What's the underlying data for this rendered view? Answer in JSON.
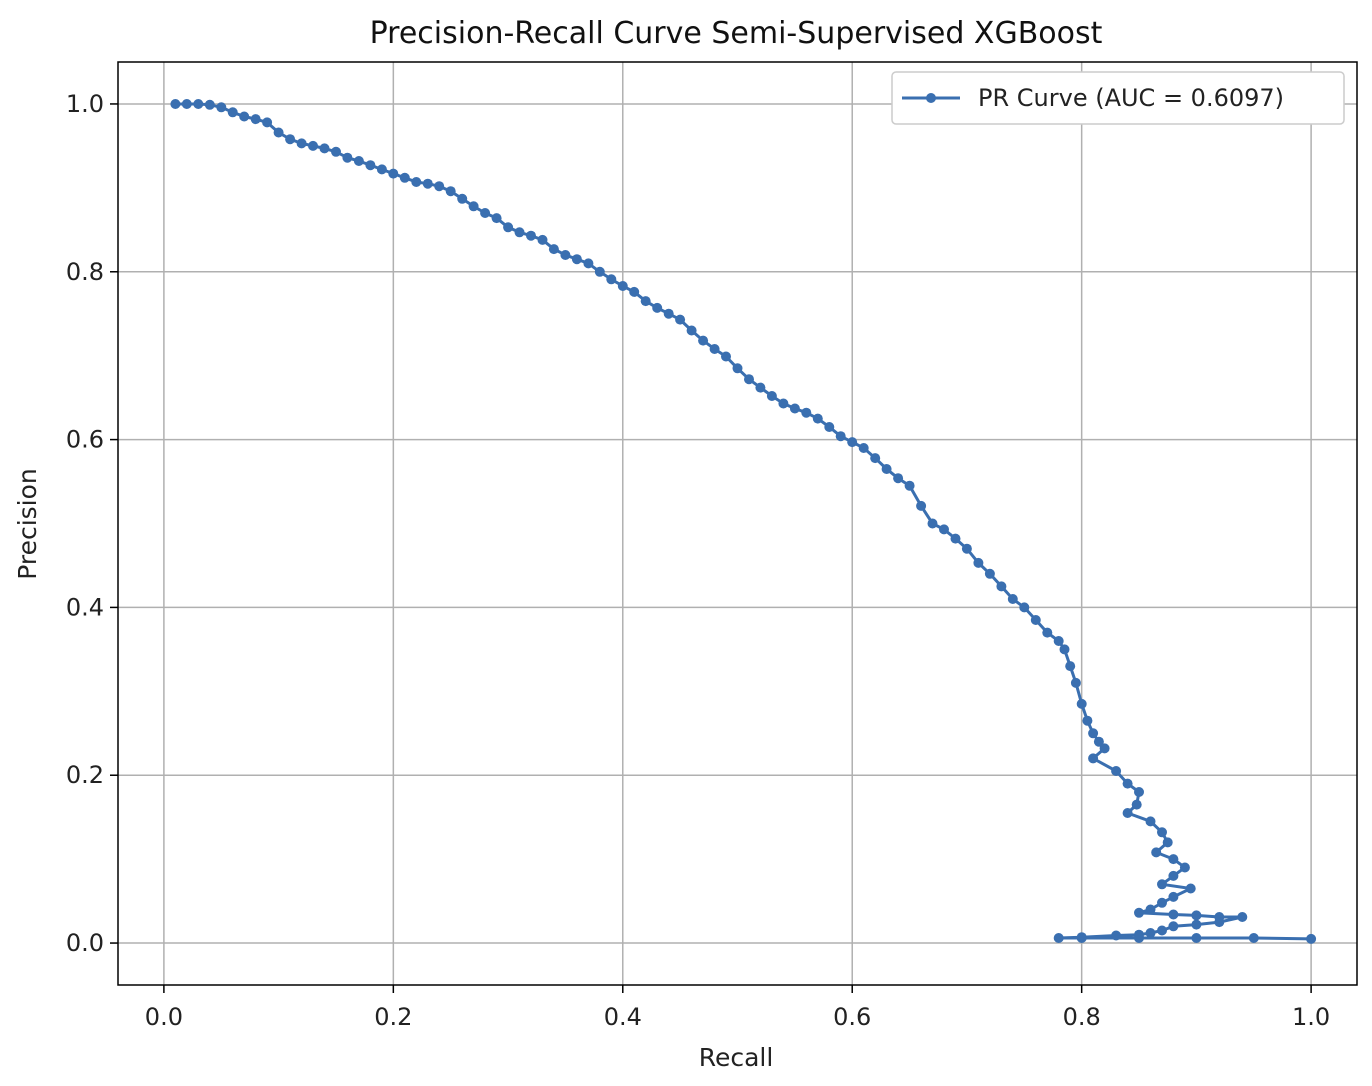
{
  "chart_data": {
    "type": "line",
    "title": "Precision-Recall Curve Semi-Supervised XGBoost",
    "xlabel": "Recall",
    "ylabel": "Precision",
    "xlim": [
      -0.04,
      1.04
    ],
    "ylim": [
      -0.05,
      1.05
    ],
    "xticks": [
      0.0,
      0.2,
      0.4,
      0.6,
      0.8,
      1.0
    ],
    "xtick_labels": [
      "0.0",
      "0.2",
      "0.4",
      "0.6",
      "0.8",
      "1.0"
    ],
    "yticks": [
      0.0,
      0.2,
      0.4,
      0.6,
      0.8,
      1.0
    ],
    "ytick_labels": [
      "0.0",
      "0.2",
      "0.4",
      "0.6",
      "0.8",
      "1.0"
    ],
    "grid": true,
    "legend_position": "top-right",
    "series": [
      {
        "name": "PR Curve (AUC = 0.6097)",
        "color": "#3a6fb0",
        "marker": "circle",
        "points": [
          [
            0.01,
            1.0
          ],
          [
            0.02,
            1.0
          ],
          [
            0.03,
            1.0
          ],
          [
            0.04,
            0.999
          ],
          [
            0.05,
            0.996
          ],
          [
            0.06,
            0.99
          ],
          [
            0.07,
            0.985
          ],
          [
            0.08,
            0.982
          ],
          [
            0.09,
            0.978
          ],
          [
            0.1,
            0.966
          ],
          [
            0.11,
            0.958
          ],
          [
            0.12,
            0.953
          ],
          [
            0.13,
            0.95
          ],
          [
            0.14,
            0.947
          ],
          [
            0.15,
            0.943
          ],
          [
            0.16,
            0.936
          ],
          [
            0.17,
            0.932
          ],
          [
            0.18,
            0.927
          ],
          [
            0.19,
            0.922
          ],
          [
            0.2,
            0.917
          ],
          [
            0.21,
            0.912
          ],
          [
            0.22,
            0.907
          ],
          [
            0.23,
            0.905
          ],
          [
            0.24,
            0.902
          ],
          [
            0.25,
            0.896
          ],
          [
            0.26,
            0.887
          ],
          [
            0.27,
            0.878
          ],
          [
            0.28,
            0.87
          ],
          [
            0.29,
            0.864
          ],
          [
            0.3,
            0.853
          ],
          [
            0.31,
            0.847
          ],
          [
            0.32,
            0.843
          ],
          [
            0.33,
            0.838
          ],
          [
            0.34,
            0.827
          ],
          [
            0.35,
            0.82
          ],
          [
            0.36,
            0.815
          ],
          [
            0.37,
            0.81
          ],
          [
            0.38,
            0.8
          ],
          [
            0.39,
            0.791
          ],
          [
            0.4,
            0.783
          ],
          [
            0.41,
            0.776
          ],
          [
            0.42,
            0.765
          ],
          [
            0.43,
            0.757
          ],
          [
            0.44,
            0.75
          ],
          [
            0.45,
            0.743
          ],
          [
            0.46,
            0.73
          ],
          [
            0.47,
            0.718
          ],
          [
            0.48,
            0.708
          ],
          [
            0.49,
            0.699
          ],
          [
            0.5,
            0.685
          ],
          [
            0.51,
            0.672
          ],
          [
            0.52,
            0.662
          ],
          [
            0.53,
            0.652
          ],
          [
            0.54,
            0.643
          ],
          [
            0.55,
            0.637
          ],
          [
            0.56,
            0.632
          ],
          [
            0.57,
            0.625
          ],
          [
            0.58,
            0.615
          ],
          [
            0.59,
            0.604
          ],
          [
            0.6,
            0.597
          ],
          [
            0.61,
            0.59
          ],
          [
            0.62,
            0.578
          ],
          [
            0.63,
            0.565
          ],
          [
            0.64,
            0.554
          ],
          [
            0.65,
            0.545
          ],
          [
            0.66,
            0.521
          ],
          [
            0.67,
            0.5
          ],
          [
            0.68,
            0.493
          ],
          [
            0.69,
            0.482
          ],
          [
            0.7,
            0.47
          ],
          [
            0.71,
            0.453
          ],
          [
            0.72,
            0.44
          ],
          [
            0.73,
            0.425
          ],
          [
            0.74,
            0.41
          ],
          [
            0.75,
            0.4
          ],
          [
            0.76,
            0.385
          ],
          [
            0.77,
            0.37
          ],
          [
            0.78,
            0.36
          ],
          [
            0.785,
            0.35
          ],
          [
            0.79,
            0.33
          ],
          [
            0.795,
            0.31
          ],
          [
            0.8,
            0.285
          ],
          [
            0.805,
            0.265
          ],
          [
            0.81,
            0.25
          ],
          [
            0.815,
            0.24
          ],
          [
            0.82,
            0.232
          ],
          [
            0.81,
            0.22
          ],
          [
            0.83,
            0.205
          ],
          [
            0.84,
            0.19
          ],
          [
            0.85,
            0.18
          ],
          [
            0.848,
            0.165
          ],
          [
            0.84,
            0.155
          ],
          [
            0.86,
            0.145
          ],
          [
            0.87,
            0.132
          ],
          [
            0.875,
            0.12
          ],
          [
            0.865,
            0.108
          ],
          [
            0.88,
            0.1
          ],
          [
            0.89,
            0.09
          ],
          [
            0.88,
            0.08
          ],
          [
            0.87,
            0.07
          ],
          [
            0.895,
            0.065
          ],
          [
            0.88,
            0.055
          ],
          [
            0.87,
            0.048
          ],
          [
            0.86,
            0.04
          ],
          [
            0.85,
            0.036
          ],
          [
            0.88,
            0.034
          ],
          [
            0.9,
            0.033
          ],
          [
            0.92,
            0.031
          ],
          [
            0.94,
            0.031
          ],
          [
            0.92,
            0.025
          ],
          [
            0.9,
            0.022
          ],
          [
            0.88,
            0.02
          ],
          [
            0.87,
            0.015
          ],
          [
            0.86,
            0.012
          ],
          [
            0.85,
            0.01
          ],
          [
            0.83,
            0.009
          ],
          [
            0.8,
            0.007
          ],
          [
            0.78,
            0.006
          ],
          [
            0.8,
            0.006
          ],
          [
            0.85,
            0.006
          ],
          [
            0.9,
            0.006
          ],
          [
            0.95,
            0.006
          ],
          [
            1.0,
            0.005
          ]
        ]
      }
    ]
  }
}
